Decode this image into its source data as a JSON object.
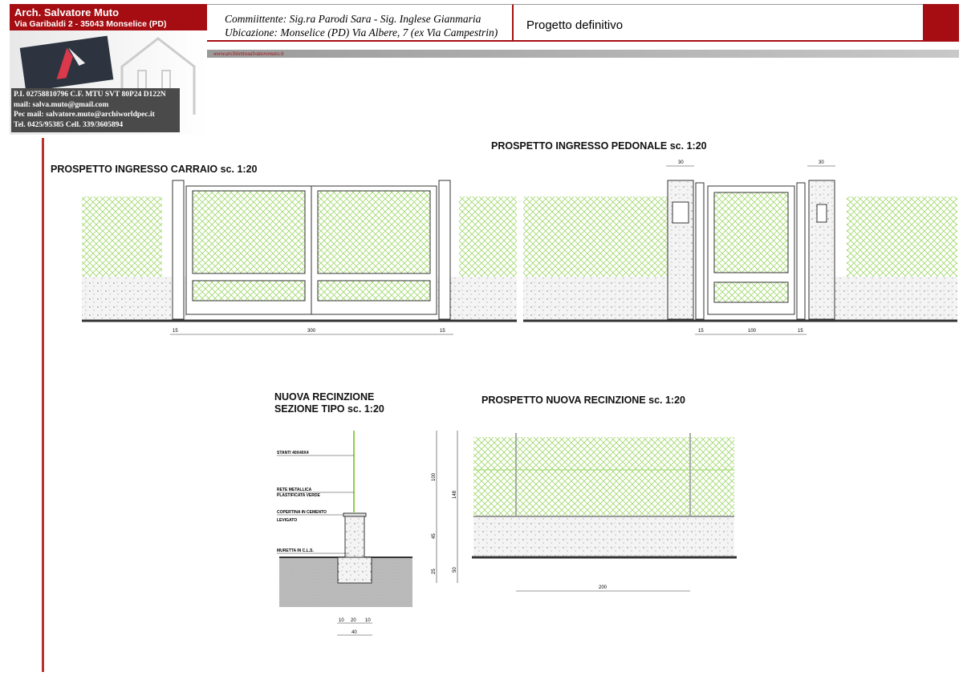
{
  "header": {
    "studio_name": "Arch. Salvatore Muto",
    "studio_address": "Via Garibaldi 2 - 35043 Monselice (PD)",
    "contacts": [
      "P.I. 02758810796 C.F. MTU SVT 80P24 D122N",
      "mail: salva.muto@gmail.com",
      "Pec mail: salvatore.muto@archiworldpec.it",
      "Tel. 0425/95385 Cell. 339/3605894"
    ],
    "client": "Commiittente: Sig.ra Parodi Sara - Sig. Inglese Gianmaria",
    "location": "Ubicazione: Monselice (PD) Via Albere, 7 (ex Via Campestrin)",
    "project_phase": "Progetto definitivo",
    "website": "www.architettosalvatoremuto.it",
    "brand_color": "#a50d12"
  },
  "drawings": {
    "carraio": {
      "title": "PROSPETTO INGRESSO CARRAIO  sc. 1:20",
      "dims": [
        "15",
        "300",
        "15"
      ]
    },
    "pedonale": {
      "title": "PROSPETTO INGRESSO PEDONALE  sc. 1:20",
      "dims": [
        "15",
        "100",
        "15"
      ],
      "pillar_dims": [
        "30",
        "30"
      ]
    },
    "sezione": {
      "title_line1": "NUOVA RECINZIONE",
      "title_line2": "SEZIONE TIPO sc. 1:20",
      "labels": [
        "STANTI 40X40X4",
        "RETE METALLICA",
        "PLASTIFICATA VERDE",
        "COPERTINA IN CEMENTO",
        "LEVIGATO",
        "MURETTA IN C.L.S."
      ],
      "dims_bottom": [
        "10",
        "20",
        "10",
        "40"
      ],
      "dims_vertical": [
        "100",
        "45",
        "25",
        "148",
        "50"
      ]
    },
    "nuova": {
      "title": "PROSPETTO NUOVA RECINZIONE  sc. 1:20",
      "dims": [
        "200"
      ]
    },
    "fence_color": "#9fd86a"
  }
}
